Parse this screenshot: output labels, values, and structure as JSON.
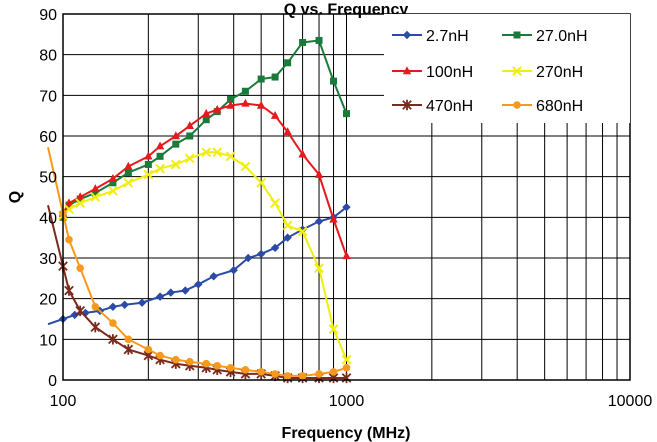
{
  "chart_data": {
    "type": "line",
    "title": "Q vs. Frequency",
    "xlabel": "Frequency (MHz)",
    "ylabel": "Q",
    "x_scale": "log",
    "xlim": [
      100,
      10000
    ],
    "ylim": [
      0,
      90
    ],
    "x_ticks": [
      "100",
      "1000",
      "10000"
    ],
    "y_ticks": [
      "0",
      "10",
      "20",
      "30",
      "40",
      "50",
      "60",
      "70",
      "80",
      "90"
    ],
    "grid": true,
    "legend_position": "top-right",
    "series": [
      {
        "name": "2.7nH",
        "color": "#2b4ba6",
        "marker": "diamond",
        "extend_left": true,
        "x": [
          100,
          110,
          120,
          135,
          150,
          165,
          190,
          220,
          240,
          270,
          300,
          340,
          400,
          450,
          500,
          560,
          620,
          700,
          800,
          900,
          1000
        ],
        "y": [
          15,
          16,
          16.5,
          17,
          18,
          18.5,
          19,
          20.5,
          21.5,
          22,
          23.5,
          25.5,
          27,
          30,
          31,
          32.5,
          35,
          37,
          39,
          40,
          42.5
        ]
      },
      {
        "name": "27.0nH",
        "color": "#1a7a3a",
        "marker": "square",
        "extend_left": false,
        "x": [
          100,
          105,
          115,
          130,
          150,
          170,
          200,
          220,
          250,
          280,
          320,
          350,
          390,
          440,
          500,
          560,
          620,
          700,
          800,
          900,
          1000
        ],
        "y": [
          40,
          43,
          44.5,
          46,
          48.5,
          51,
          53,
          55,
          58,
          60,
          64,
          66,
          69,
          71,
          74,
          74.5,
          78,
          83,
          83.5,
          73.5,
          65.5
        ]
      },
      {
        "name": "100nH",
        "color": "#e8191c",
        "marker": "triangle",
        "extend_left": false,
        "x": [
          100,
          105,
          115,
          130,
          150,
          170,
          200,
          220,
          250,
          280,
          320,
          350,
          390,
          440,
          500,
          560,
          620,
          700,
          800,
          900,
          1000
        ],
        "y": [
          41,
          43.5,
          45,
          47,
          49.5,
          52.5,
          55,
          57.5,
          60,
          62.5,
          65.5,
          66.5,
          67.5,
          68,
          67.5,
          65,
          61,
          55.5,
          50.5,
          39.5,
          30.5
        ]
      },
      {
        "name": "270nH",
        "color": "#f1ee0f",
        "marker": "x",
        "extend_left": false,
        "x": [
          100,
          105,
          115,
          130,
          150,
          170,
          200,
          220,
          250,
          280,
          320,
          350,
          390,
          440,
          500,
          560,
          620,
          700,
          800,
          900,
          1000
        ],
        "y": [
          40.5,
          42,
          43.5,
          45,
          46.5,
          48.5,
          50.5,
          52,
          53,
          54.5,
          56,
          56,
          55,
          52.5,
          48.5,
          43.5,
          38,
          36.5,
          27.5,
          12.5,
          5
        ]
      },
      {
        "name": "470nH",
        "color": "#7b2a1c",
        "marker": "star",
        "extend_left": true,
        "x": [
          100,
          105,
          115,
          130,
          150,
          170,
          200,
          220,
          250,
          280,
          320,
          350,
          390,
          440,
          500,
          560,
          620,
          700,
          800,
          900,
          1000
        ],
        "y": [
          28,
          22,
          17,
          13,
          10,
          7.5,
          6,
          5,
          4,
          3.5,
          3,
          2.5,
          2,
          1.5,
          1.5,
          1,
          0.5,
          0.5,
          0.5,
          0.5,
          0.5
        ]
      },
      {
        "name": "680nH",
        "color": "#f79a1c",
        "marker": "circle",
        "extend_left": true,
        "x": [
          100,
          105,
          115,
          130,
          150,
          170,
          200,
          220,
          250,
          280,
          320,
          350,
          390,
          440,
          500,
          560,
          620,
          700,
          800,
          900,
          1000
        ],
        "y": [
          41,
          34.5,
          27.5,
          18,
          14,
          10,
          7.5,
          6,
          5,
          4.5,
          4,
          3.5,
          3,
          2.5,
          2,
          1.5,
          1,
          1,
          1.5,
          2,
          3
        ]
      }
    ]
  }
}
